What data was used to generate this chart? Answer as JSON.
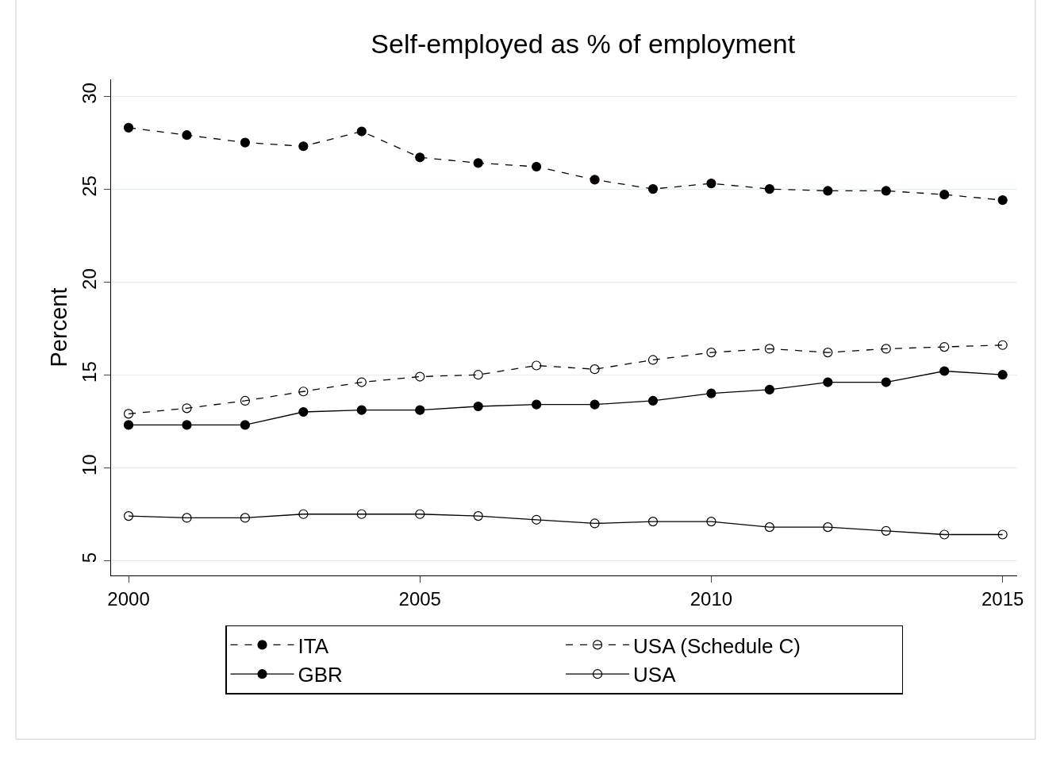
{
  "chart_data": {
    "type": "line",
    "title": "Self-employed as % of employment",
    "ylabel": "Percent",
    "x": [
      2000,
      2001,
      2002,
      2003,
      2004,
      2005,
      2006,
      2007,
      2008,
      2009,
      2010,
      2011,
      2012,
      2013,
      2014,
      2015
    ],
    "xlim": [
      1999.7,
      2015.25
    ],
    "xticks": [
      2000,
      2005,
      2010,
      2015
    ],
    "ylim": [
      4.2,
      30.9
    ],
    "yticks": [
      5,
      10,
      15,
      20,
      25,
      30
    ],
    "grid": "y",
    "legend": "bottom",
    "series": [
      {
        "name": "ITA",
        "color": "#000000",
        "line_style": "dashed",
        "marker": "circle",
        "values": [
          28.3,
          27.9,
          27.5,
          27.3,
          28.1,
          26.7,
          26.4,
          26.2,
          25.5,
          25.0,
          25.3,
          25.0,
          24.9,
          24.9,
          24.7,
          24.4
        ]
      },
      {
        "name": "USA (Schedule C)",
        "color": "#000000",
        "line_style": "dashed",
        "marker": "circle-open",
        "values": [
          12.9,
          13.2,
          13.6,
          14.1,
          14.6,
          14.9,
          15.0,
          15.5,
          15.3,
          15.8,
          16.2,
          16.4,
          16.2,
          16.4,
          16.5,
          16.6
        ]
      },
      {
        "name": "GBR",
        "color": "#000000",
        "line_style": "solid",
        "marker": "circle",
        "values": [
          12.3,
          12.3,
          12.3,
          13.0,
          13.1,
          13.1,
          13.3,
          13.4,
          13.4,
          13.6,
          14.0,
          14.2,
          14.6,
          14.6,
          15.2,
          15.0
        ]
      },
      {
        "name": "USA",
        "color": "#000000",
        "line_style": "solid",
        "marker": "circle-open",
        "values": [
          7.4,
          7.3,
          7.3,
          7.5,
          7.5,
          7.5,
          7.4,
          7.2,
          7.0,
          7.1,
          7.1,
          6.8,
          6.8,
          6.6,
          6.4,
          6.4
        ]
      }
    ]
  }
}
